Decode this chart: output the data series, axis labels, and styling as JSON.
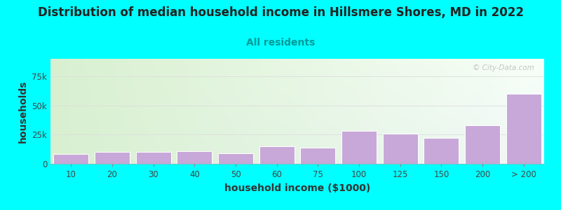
{
  "title": "Distribution of median household income in Hillsmere Shores, MD in 2022",
  "subtitle": "All residents",
  "xlabel": "household income ($1000)",
  "ylabel": "households",
  "background_color": "#00FFFF",
  "bar_color": "#c8a8d8",
  "bar_edge_color": "#ffffff",
  "categories": [
    "10",
    "20",
    "30",
    "40",
    "50",
    "60",
    "75",
    "100",
    "125",
    "150",
    "200",
    "> 200"
  ],
  "values": [
    8500,
    10500,
    10000,
    11000,
    9000,
    15000,
    14000,
    28000,
    26000,
    22000,
    33000,
    60000
  ],
  "ylim": [
    0,
    90000
  ],
  "yticks": [
    0,
    25000,
    50000,
    75000
  ],
  "ytick_labels": [
    "0",
    "25k",
    "50k",
    "75k"
  ],
  "title_fontsize": 12,
  "subtitle_fontsize": 10,
  "axis_label_fontsize": 10,
  "tick_fontsize": 8.5,
  "title_color": "#222222",
  "subtitle_color": "#009999",
  "axis_label_color": "#333333",
  "tick_color": "#444444",
  "watermark_text": "© City-Data.com",
  "watermark_color": "#bbbbbb",
  "grid_color": "#dddddd",
  "bg_left_color": "#d8f0d0",
  "bg_right_color": "#f0f8f8"
}
